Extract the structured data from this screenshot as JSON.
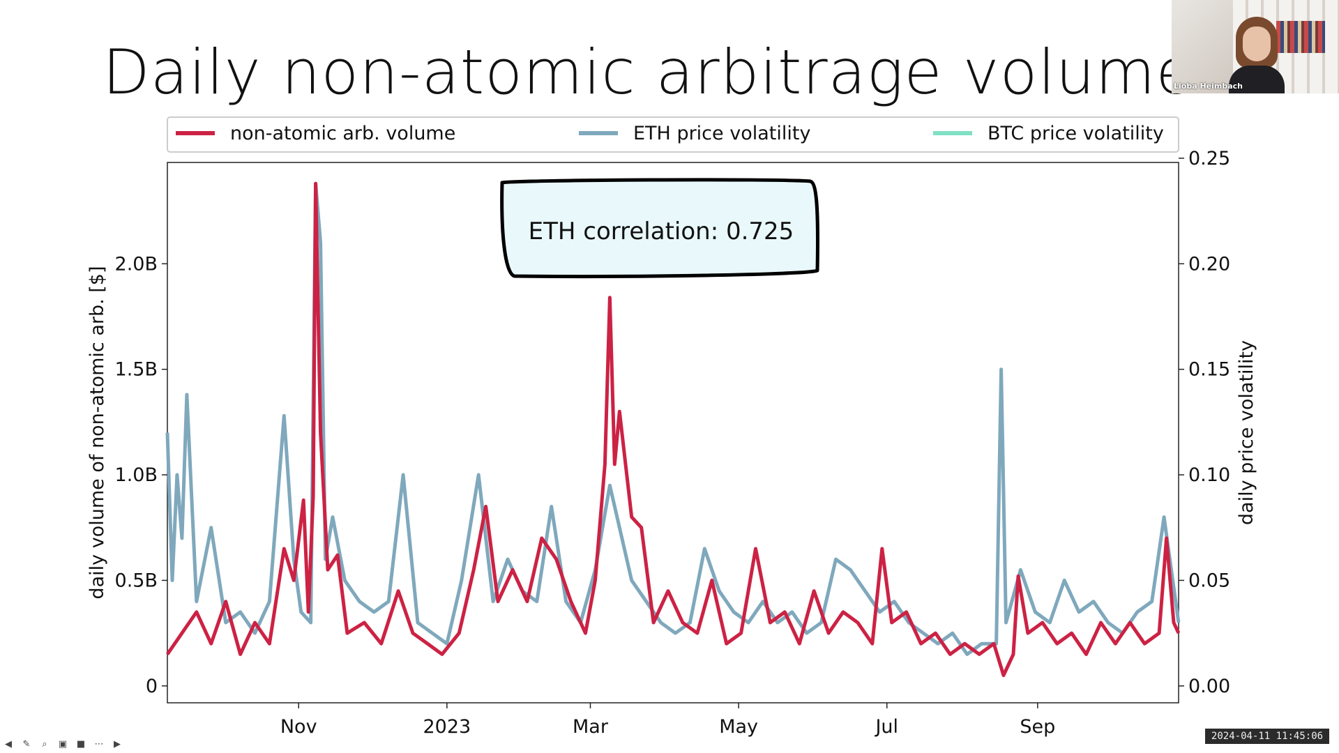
{
  "slide": {
    "title": "Daily non-atomic arbitrage volume"
  },
  "webcam": {
    "name": "Lioba Heimbach"
  },
  "timestamp": "2024-04-11 11:45:06",
  "toolbar": {
    "icons": [
      "back-arrow-icon",
      "pen-icon",
      "zoom-icon",
      "cc-icon",
      "camera-icon",
      "more-icon",
      "forward-arrow-icon"
    ]
  },
  "chart_data": {
    "type": "line",
    "title": "",
    "annotation": "ETH correlation: 0.725",
    "xlabel": "",
    "ylabel": "daily volume of non-atomic arb. [$]",
    "y2label": "daily price volatility",
    "x_range": [
      "2022-09-08",
      "2023-10-29"
    ],
    "ylim": [
      -0.08,
      2.48
    ],
    "y2lim": [
      -0.008,
      0.248
    ],
    "xticks": [
      {
        "date": "2022-11-01",
        "label": "Nov"
      },
      {
        "date": "2023-01-01",
        "label": "2023"
      },
      {
        "date": "2023-03-01",
        "label": "Mar"
      },
      {
        "date": "2023-05-01",
        "label": "May"
      },
      {
        "date": "2023-07-01",
        "label": "Jul"
      },
      {
        "date": "2023-09-01",
        "label": "Sep"
      }
    ],
    "yticks": [
      {
        "v": 0,
        "label": "0"
      },
      {
        "v": 0.5,
        "label": "0.5B"
      },
      {
        "v": 1.0,
        "label": "1.0B"
      },
      {
        "v": 1.5,
        "label": "1.5B"
      },
      {
        "v": 2.0,
        "label": "2.0B"
      }
    ],
    "y2ticks": [
      {
        "v": 0.0,
        "label": "0.00"
      },
      {
        "v": 0.05,
        "label": "0.05"
      },
      {
        "v": 0.1,
        "label": "0.10"
      },
      {
        "v": 0.15,
        "label": "0.15"
      },
      {
        "v": 0.2,
        "label": "0.20"
      },
      {
        "v": 0.25,
        "label": "0.25"
      }
    ],
    "legend_position": "top",
    "grid": false,
    "series": [
      {
        "name": "non-atomic arb. volume",
        "axis": "left",
        "color": "#cc2244",
        "points": [
          [
            "2022-09-08",
            0.15
          ],
          [
            "2022-09-14",
            0.25
          ],
          [
            "2022-09-20",
            0.35
          ],
          [
            "2022-09-26",
            0.2
          ],
          [
            "2022-10-02",
            0.4
          ],
          [
            "2022-10-08",
            0.15
          ],
          [
            "2022-10-14",
            0.3
          ],
          [
            "2022-10-20",
            0.2
          ],
          [
            "2022-10-26",
            0.65
          ],
          [
            "2022-10-30",
            0.5
          ],
          [
            "2022-11-03",
            0.88
          ],
          [
            "2022-11-05",
            0.35
          ],
          [
            "2022-11-07",
            0.9
          ],
          [
            "2022-11-08",
            2.38
          ],
          [
            "2022-11-10",
            1.2
          ],
          [
            "2022-11-13",
            0.55
          ],
          [
            "2022-11-17",
            0.62
          ],
          [
            "2022-11-21",
            0.25
          ],
          [
            "2022-11-28",
            0.3
          ],
          [
            "2022-12-05",
            0.2
          ],
          [
            "2022-12-12",
            0.45
          ],
          [
            "2022-12-18",
            0.25
          ],
          [
            "2022-12-24",
            0.2
          ],
          [
            "2022-12-30",
            0.15
          ],
          [
            "2023-01-06",
            0.25
          ],
          [
            "2023-01-12",
            0.55
          ],
          [
            "2023-01-17",
            0.85
          ],
          [
            "2023-01-22",
            0.4
          ],
          [
            "2023-01-28",
            0.55
          ],
          [
            "2023-02-03",
            0.4
          ],
          [
            "2023-02-09",
            0.7
          ],
          [
            "2023-02-15",
            0.6
          ],
          [
            "2023-02-21",
            0.4
          ],
          [
            "2023-02-27",
            0.25
          ],
          [
            "2023-03-03",
            0.5
          ],
          [
            "2023-03-07",
            1.05
          ],
          [
            "2023-03-09",
            1.84
          ],
          [
            "2023-03-11",
            1.05
          ],
          [
            "2023-03-13",
            1.3
          ],
          [
            "2023-03-18",
            0.8
          ],
          [
            "2023-03-22",
            0.75
          ],
          [
            "2023-03-27",
            0.3
          ],
          [
            "2023-04-02",
            0.45
          ],
          [
            "2023-04-08",
            0.3
          ],
          [
            "2023-04-14",
            0.25
          ],
          [
            "2023-04-20",
            0.5
          ],
          [
            "2023-04-26",
            0.2
          ],
          [
            "2023-05-02",
            0.25
          ],
          [
            "2023-05-08",
            0.65
          ],
          [
            "2023-05-14",
            0.3
          ],
          [
            "2023-05-20",
            0.35
          ],
          [
            "2023-05-26",
            0.2
          ],
          [
            "2023-06-01",
            0.45
          ],
          [
            "2023-06-07",
            0.25
          ],
          [
            "2023-06-13",
            0.35
          ],
          [
            "2023-06-19",
            0.3
          ],
          [
            "2023-06-25",
            0.2
          ],
          [
            "2023-06-29",
            0.65
          ],
          [
            "2023-07-03",
            0.3
          ],
          [
            "2023-07-09",
            0.35
          ],
          [
            "2023-07-15",
            0.2
          ],
          [
            "2023-07-21",
            0.25
          ],
          [
            "2023-07-27",
            0.15
          ],
          [
            "2023-08-02",
            0.2
          ],
          [
            "2023-08-08",
            0.15
          ],
          [
            "2023-08-14",
            0.2
          ],
          [
            "2023-08-18",
            0.05
          ],
          [
            "2023-08-22",
            0.15
          ],
          [
            "2023-08-24",
            0.52
          ],
          [
            "2023-08-28",
            0.25
          ],
          [
            "2023-09-03",
            0.3
          ],
          [
            "2023-09-09",
            0.2
          ],
          [
            "2023-09-15",
            0.25
          ],
          [
            "2023-09-21",
            0.15
          ],
          [
            "2023-09-27",
            0.3
          ],
          [
            "2023-10-03",
            0.2
          ],
          [
            "2023-10-09",
            0.3
          ],
          [
            "2023-10-15",
            0.2
          ],
          [
            "2023-10-21",
            0.25
          ],
          [
            "2023-10-24",
            0.7
          ],
          [
            "2023-10-27",
            0.3
          ],
          [
            "2023-10-29",
            0.25
          ]
        ]
      },
      {
        "name": "ETH price volatility",
        "axis": "right",
        "color": "#7fa8bc",
        "points": [
          [
            "2022-09-08",
            0.12
          ],
          [
            "2022-09-10",
            0.05
          ],
          [
            "2022-09-12",
            0.1
          ],
          [
            "2022-09-14",
            0.07
          ],
          [
            "2022-09-16",
            0.138
          ],
          [
            "2022-09-20",
            0.04
          ],
          [
            "2022-09-26",
            0.075
          ],
          [
            "2022-10-02",
            0.03
          ],
          [
            "2022-10-08",
            0.035
          ],
          [
            "2022-10-14",
            0.025
          ],
          [
            "2022-10-20",
            0.04
          ],
          [
            "2022-10-26",
            0.128
          ],
          [
            "2022-10-30",
            0.06
          ],
          [
            "2022-11-02",
            0.035
          ],
          [
            "2022-11-06",
            0.03
          ],
          [
            "2022-11-08",
            0.238
          ],
          [
            "2022-11-10",
            0.21
          ],
          [
            "2022-11-12",
            0.06
          ],
          [
            "2022-11-15",
            0.08
          ],
          [
            "2022-11-20",
            0.05
          ],
          [
            "2022-11-26",
            0.04
          ],
          [
            "2022-12-02",
            0.035
          ],
          [
            "2022-12-08",
            0.04
          ],
          [
            "2022-12-14",
            0.1
          ],
          [
            "2022-12-20",
            0.03
          ],
          [
            "2022-12-26",
            0.025
          ],
          [
            "2023-01-01",
            0.02
          ],
          [
            "2023-01-07",
            0.05
          ],
          [
            "2023-01-14",
            0.1
          ],
          [
            "2023-01-20",
            0.04
          ],
          [
            "2023-01-26",
            0.06
          ],
          [
            "2023-02-01",
            0.045
          ],
          [
            "2023-02-07",
            0.04
          ],
          [
            "2023-02-13",
            0.085
          ],
          [
            "2023-02-19",
            0.04
          ],
          [
            "2023-02-25",
            0.03
          ],
          [
            "2023-03-03",
            0.055
          ],
          [
            "2023-03-09",
            0.095
          ],
          [
            "2023-03-13",
            0.075
          ],
          [
            "2023-03-18",
            0.05
          ],
          [
            "2023-03-24",
            0.04
          ],
          [
            "2023-03-30",
            0.03
          ],
          [
            "2023-04-05",
            0.025
          ],
          [
            "2023-04-11",
            0.03
          ],
          [
            "2023-04-17",
            0.065
          ],
          [
            "2023-04-23",
            0.045
          ],
          [
            "2023-04-29",
            0.035
          ],
          [
            "2023-05-05",
            0.03
          ],
          [
            "2023-05-11",
            0.04
          ],
          [
            "2023-05-17",
            0.03
          ],
          [
            "2023-05-23",
            0.035
          ],
          [
            "2023-05-29",
            0.025
          ],
          [
            "2023-06-04",
            0.03
          ],
          [
            "2023-06-10",
            0.06
          ],
          [
            "2023-06-16",
            0.055
          ],
          [
            "2023-06-22",
            0.045
          ],
          [
            "2023-06-28",
            0.035
          ],
          [
            "2023-07-04",
            0.04
          ],
          [
            "2023-07-10",
            0.03
          ],
          [
            "2023-07-16",
            0.025
          ],
          [
            "2023-07-22",
            0.02
          ],
          [
            "2023-07-28",
            0.025
          ],
          [
            "2023-08-03",
            0.015
          ],
          [
            "2023-08-09",
            0.02
          ],
          [
            "2023-08-15",
            0.02
          ],
          [
            "2023-08-17",
            0.15
          ],
          [
            "2023-08-19",
            0.03
          ],
          [
            "2023-08-25",
            0.055
          ],
          [
            "2023-08-31",
            0.035
          ],
          [
            "2023-09-06",
            0.03
          ],
          [
            "2023-09-12",
            0.05
          ],
          [
            "2023-09-18",
            0.035
          ],
          [
            "2023-09-24",
            0.04
          ],
          [
            "2023-09-30",
            0.03
          ],
          [
            "2023-10-06",
            0.025
          ],
          [
            "2023-10-12",
            0.035
          ],
          [
            "2023-10-18",
            0.04
          ],
          [
            "2023-10-23",
            0.08
          ],
          [
            "2023-10-26",
            0.055
          ],
          [
            "2023-10-29",
            0.03
          ]
        ]
      },
      {
        "name": "BTC price volatility",
        "axis": "right",
        "color": "#7fe0c4",
        "points": []
      }
    ]
  }
}
